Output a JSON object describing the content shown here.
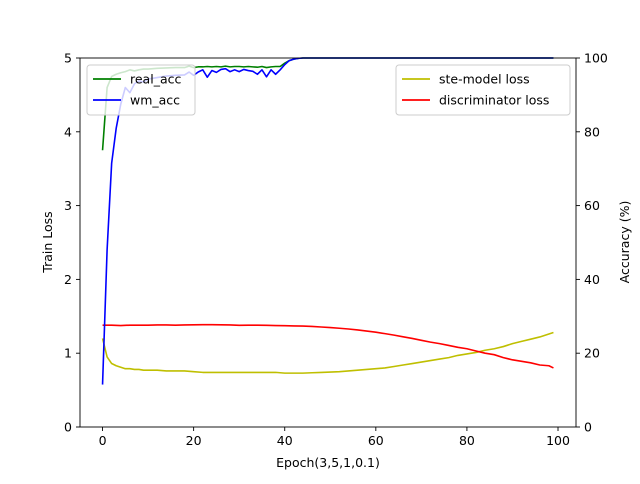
{
  "chart_data": {
    "type": "line",
    "title": "",
    "xlabel": "Epoch(3,5,1,0.1)",
    "ylabel_left": "Train Loss",
    "ylabel_right": "Accuracy (%)",
    "xlim": [
      -4.95,
      103.95
    ],
    "ylim_left": [
      0,
      5
    ],
    "ylim_right": [
      0,
      100
    ],
    "x_ticks": [
      0,
      20,
      40,
      60,
      80,
      100
    ],
    "y_ticks_left": [
      0,
      1,
      2,
      3,
      4,
      5
    ],
    "y_ticks_right": [
      0,
      20,
      40,
      60,
      80,
      100
    ],
    "grid": false,
    "legend_left": {
      "placement": "upper-left",
      "entries": [
        "real_acc",
        "wm_acc"
      ]
    },
    "legend_right": {
      "placement": "upper-right",
      "entries": [
        "ste-model loss",
        "discriminator loss"
      ]
    },
    "colors": {
      "real_acc": "#008000",
      "wm_acc": "#0000ff",
      "ste_model_loss": "#bfbf00",
      "discriminator_loss": "#ff0000"
    },
    "series_right": [
      {
        "name": "real_acc",
        "color": "#008000",
        "x": [
          0,
          1,
          2,
          3,
          4,
          5,
          6,
          7,
          8,
          9,
          10,
          12,
          14,
          16,
          18,
          19,
          20,
          21,
          22,
          23,
          24,
          25,
          26,
          27,
          28,
          29,
          30,
          31,
          32,
          33,
          34,
          35,
          36,
          37,
          38,
          39,
          40,
          41,
          42,
          43,
          44,
          45,
          46,
          47,
          48,
          49,
          50,
          52,
          54,
          56,
          58,
          60,
          65,
          70,
          75,
          80,
          85,
          90,
          95,
          99
        ],
        "y": [
          75,
          92,
          95,
          95.6,
          96,
          96.3,
          96.8,
          96.5,
          96.8,
          97,
          97,
          97.2,
          97.3,
          97.4,
          97.4,
          97.8,
          97.4,
          97.6,
          97.6,
          97.7,
          97.6,
          97.7,
          97.6,
          97.8,
          97.6,
          97.7,
          97.7,
          97.6,
          97.7,
          97.6,
          97.5,
          97.7,
          97.4,
          97.6,
          97.7,
          97.7,
          98.6,
          99.3,
          99.7,
          99.9,
          100,
          100,
          100,
          100,
          100,
          100,
          100,
          100,
          100,
          100,
          100,
          100,
          100,
          100,
          100,
          100,
          100,
          100,
          100,
          100
        ]
      },
      {
        "name": "wm_acc",
        "color": "#0000ff",
        "x": [
          0,
          1,
          2,
          3,
          4,
          5,
          6,
          7,
          8,
          9,
          10,
          12,
          14,
          16,
          18,
          19,
          20,
          21,
          22,
          23,
          24,
          25,
          26,
          27,
          28,
          29,
          30,
          31,
          32,
          33,
          34,
          35,
          36,
          37,
          38,
          39,
          40,
          41,
          42,
          43,
          44,
          45,
          46,
          47,
          48,
          49,
          50,
          52,
          54,
          56,
          58,
          60,
          65,
          70,
          75,
          80,
          85,
          90,
          95,
          99
        ],
        "y": [
          11.5,
          48,
          71.5,
          81,
          87.5,
          92,
          90.6,
          93,
          93.8,
          93.5,
          94.3,
          94.7,
          95.1,
          95.3,
          95.4,
          96.2,
          95.3,
          96.2,
          96.8,
          94.8,
          96.6,
          96.1,
          96.9,
          97.1,
          96.3,
          96.8,
          96.3,
          96.9,
          96.6,
          96.4,
          95.6,
          96.8,
          94.9,
          96.8,
          95.6,
          96.8,
          98.2,
          99.3,
          99.7,
          99.9,
          100,
          100,
          100,
          100,
          100,
          100,
          100,
          100,
          100,
          100,
          100,
          100,
          100,
          100,
          100,
          100,
          100,
          100,
          100,
          100
        ]
      }
    ],
    "series_left": [
      {
        "name": "ste-model loss",
        "color": "#bfbf00",
        "x": [
          0,
          1,
          2,
          3,
          4,
          5,
          6,
          7,
          8,
          9,
          10,
          12,
          14,
          16,
          18,
          20,
          22,
          24,
          26,
          28,
          30,
          32,
          34,
          36,
          38,
          40,
          42,
          44,
          46,
          48,
          50,
          52,
          54,
          56,
          58,
          60,
          62,
          64,
          66,
          68,
          70,
          72,
          74,
          76,
          78,
          80,
          82,
          84,
          86,
          88,
          90,
          92,
          94,
          96,
          98,
          99
        ],
        "y": [
          1.2,
          0.95,
          0.86,
          0.83,
          0.81,
          0.79,
          0.79,
          0.78,
          0.78,
          0.77,
          0.77,
          0.77,
          0.76,
          0.76,
          0.76,
          0.75,
          0.74,
          0.74,
          0.74,
          0.74,
          0.74,
          0.74,
          0.74,
          0.74,
          0.74,
          0.73,
          0.73,
          0.73,
          0.735,
          0.74,
          0.745,
          0.75,
          0.76,
          0.77,
          0.78,
          0.79,
          0.8,
          0.82,
          0.84,
          0.86,
          0.88,
          0.9,
          0.92,
          0.94,
          0.97,
          0.99,
          1.01,
          1.04,
          1.06,
          1.09,
          1.13,
          1.16,
          1.19,
          1.22,
          1.26,
          1.28
        ]
      },
      {
        "name": "discriminator loss",
        "color": "#ff0000",
        "x": [
          0,
          2,
          4,
          6,
          8,
          10,
          12,
          14,
          16,
          18,
          20,
          22,
          24,
          26,
          28,
          30,
          32,
          34,
          36,
          38,
          40,
          42,
          44,
          46,
          48,
          50,
          52,
          54,
          56,
          58,
          60,
          62,
          64,
          66,
          68,
          70,
          72,
          74,
          76,
          78,
          80,
          82,
          84,
          86,
          88,
          90,
          92,
          94,
          96,
          98,
          99
        ],
        "y": [
          1.38,
          1.38,
          1.375,
          1.38,
          1.38,
          1.38,
          1.383,
          1.383,
          1.38,
          1.383,
          1.385,
          1.387,
          1.387,
          1.385,
          1.383,
          1.378,
          1.38,
          1.38,
          1.378,
          1.375,
          1.373,
          1.37,
          1.368,
          1.362,
          1.355,
          1.348,
          1.338,
          1.328,
          1.315,
          1.3,
          1.285,
          1.265,
          1.245,
          1.222,
          1.2,
          1.175,
          1.15,
          1.13,
          1.105,
          1.08,
          1.06,
          1.03,
          1.0,
          0.98,
          0.94,
          0.91,
          0.89,
          0.87,
          0.84,
          0.83,
          0.8
        ]
      }
    ]
  }
}
